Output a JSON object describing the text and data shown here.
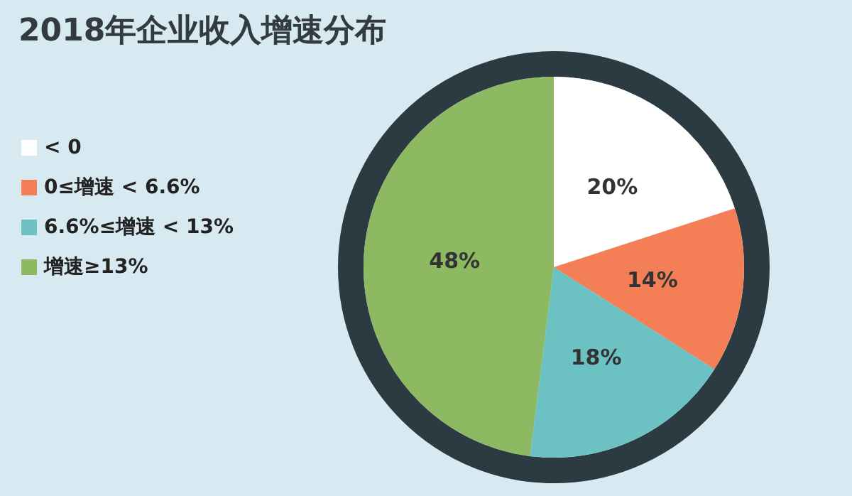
{
  "chart_data": {
    "type": "pie",
    "title": "2018年企业收入增速分布",
    "categories": [
      "< 0",
      "0≤增速 < 6.6%",
      "6.6%≤增速 < 13%",
      "增速≥13%"
    ],
    "values": [
      20,
      14,
      18,
      48
    ],
    "value_labels": [
      "20%",
      "14%",
      "18%",
      "48%"
    ],
    "colors": [
      "#ffffff",
      "#f47f56",
      "#6cc2c3",
      "#8cb962"
    ],
    "legend": "left"
  }
}
